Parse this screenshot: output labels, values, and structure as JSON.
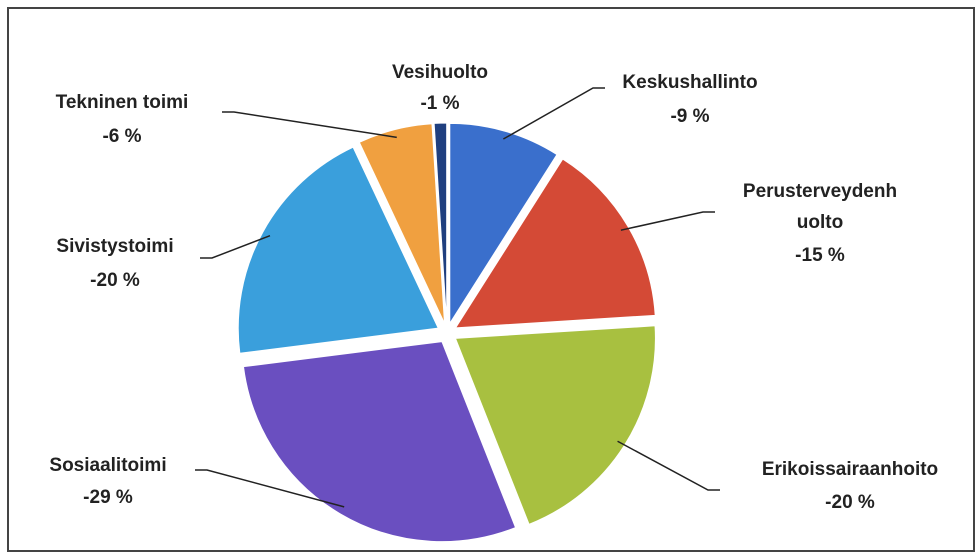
{
  "chart_data": {
    "type": "pie",
    "categories": [
      "Keskushallinto",
      "Perusterveydenhuolto",
      "Erikoissairaanhoito",
      "Sosiaalitoimi",
      "Sivistystoimi",
      "Tekninen toimi",
      "Vesihuolto"
    ],
    "values": [
      -9,
      -15,
      -20,
      -29,
      -20,
      -6,
      -1
    ],
    "value_labels": [
      "-9 %",
      "-15 %",
      "-20 %",
      "-29 %",
      "-20 %",
      "-6 %",
      "-1 %"
    ],
    "colors": [
      "#3a6fcc",
      "#d44a36",
      "#a8c040",
      "#6a4fc0",
      "#3a9fdc",
      "#f0a040",
      "#1f3f7f"
    ]
  }
}
